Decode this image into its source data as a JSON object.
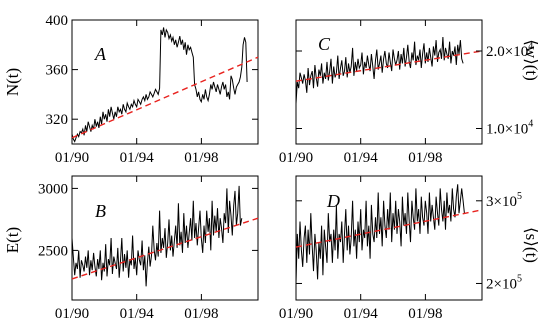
{
  "chart_data": [
    {
      "type": "line",
      "panel": "A",
      "ylabel": "N(t)",
      "x_ticks": [
        "01/90",
        "01/94",
        "01/98"
      ],
      "y_ticks": [
        "320",
        "360",
        "400"
      ],
      "xlim": [
        1990.0,
        2001.5
      ],
      "ylim": [
        300,
        400
      ],
      "y_axis_side": "left",
      "series": [
        {
          "style": "solid black",
          "x_start": 1990.0,
          "x_step": 0.0833,
          "values": [
            308,
            304,
            302,
            305,
            308,
            306,
            310,
            309,
            312,
            307,
            315,
            310,
            318,
            314,
            310,
            315,
            312,
            320,
            314,
            318,
            313,
            322,
            316,
            326,
            320,
            324,
            318,
            328,
            322,
            330,
            325,
            320,
            326,
            322,
            330,
            326,
            328,
            324,
            332,
            328,
            326,
            333,
            330,
            328,
            332,
            330,
            335,
            332,
            330,
            336,
            334,
            332,
            336,
            338,
            335,
            340,
            336,
            338,
            342,
            340,
            338,
            341,
            344,
            342,
            340,
            345,
            392,
            388,
            394,
            386,
            392,
            390,
            385,
            388,
            383,
            386,
            380,
            384,
            378,
            382,
            387,
            380,
            384,
            376,
            382,
            372,
            380,
            376,
            378,
            374,
            370,
            348,
            344,
            338,
            342,
            336,
            334,
            340,
            336,
            344,
            338,
            335,
            340,
            348,
            344,
            350,
            346,
            342,
            348,
            344,
            340,
            346,
            350,
            344,
            348,
            338,
            342,
            336,
            355,
            352,
            345,
            340,
            346,
            348,
            350,
            354,
            362,
            380,
            386,
            382,
            350
          ]
        },
        {
          "style": "dashed red",
          "x": [
            1990.0,
            2001.5
          ],
          "values": [
            305,
            370
          ]
        }
      ]
    },
    {
      "type": "line",
      "panel": "B",
      "ylabel": "E(t)",
      "x_ticks": [
        "01/90",
        "01/94",
        "01/98"
      ],
      "y_ticks": [
        "2500",
        "3000"
      ],
      "xlim": [
        1990.0,
        2001.5
      ],
      "ylim": [
        2100,
        3100
      ],
      "y_axis_side": "left",
      "series": [
        {
          "style": "solid black",
          "x_start": 1990.0,
          "x_step": 0.0833,
          "values": [
            2600,
            2450,
            2300,
            2400,
            2350,
            2500,
            2280,
            2420,
            2380,
            2330,
            2450,
            2360,
            2500,
            2300,
            2420,
            2340,
            2480,
            2370,
            2290,
            2430,
            2350,
            2500,
            2260,
            2400,
            2330,
            2550,
            2290,
            2430,
            2380,
            2600,
            2310,
            2450,
            2400,
            2350,
            2520,
            2280,
            2420,
            2600,
            2330,
            2470,
            2360,
            2500,
            2280,
            2430,
            2380,
            2620,
            2350,
            2440,
            2300,
            2500,
            2420,
            2380,
            2580,
            2340,
            2460,
            2210,
            2400,
            2530,
            2370,
            2460,
            2700,
            2500,
            2420,
            2560,
            2450,
            2820,
            2480,
            2600,
            2520,
            2680,
            2440,
            2560,
            2750,
            2500,
            2620,
            2450,
            2580,
            2700,
            2520,
            2880,
            2540,
            2650,
            2480,
            2800,
            2560,
            2700,
            2520,
            2640,
            2760,
            2580,
            2900,
            2600,
            2720,
            2540,
            2680,
            2820,
            2600,
            2480,
            2700,
            2560,
            2820,
            2650,
            2760,
            2500,
            2900,
            2620,
            2780,
            2650,
            2840,
            2600,
            2760,
            2680,
            2560,
            2800,
            2720,
            3000,
            2640,
            2900,
            2780,
            2620,
            2860,
            2980,
            2700,
            2800,
            3020,
            2700,
            2760
          ]
        },
        {
          "style": "dashed red",
          "x": [
            1990.0,
            2001.5
          ],
          "values": [
            2270,
            2760
          ]
        }
      ]
    },
    {
      "type": "line",
      "panel": "C",
      "ylabel": "⟨w⟩(t)",
      "x_ticks": [
        "01/90",
        "01/94",
        "01/98"
      ],
      "y_ticks": [
        "1.0×10^4",
        "2.0×10^4"
      ],
      "xlim": [
        1990.0,
        2001.5
      ],
      "ylim": [
        8000,
        24000
      ],
      "y_axis_side": "right",
      "series": [
        {
          "style": "solid black",
          "x_start": 1990.0,
          "x_step": 0.0833,
          "values": [
            13200,
            16000,
            15200,
            17200,
            16500,
            15800,
            17000,
            16200,
            14600,
            17800,
            15600,
            16800,
            17400,
            15200,
            18200,
            16600,
            15400,
            17600,
            16800,
            18400,
            15800,
            17200,
            16400,
            18600,
            16200,
            17400,
            19000,
            15800,
            18000,
            16600,
            17200,
            19400,
            16400,
            17800,
            18800,
            16800,
            17400,
            19200,
            16600,
            18400,
            17200,
            18000,
            20400,
            16800,
            18600,
            17400,
            19000,
            17800,
            18200,
            19800,
            17000,
            18600,
            17800,
            19400,
            18200,
            17400,
            19600,
            18000,
            16400,
            18800,
            20200,
            17600,
            18400,
            19400,
            17200,
            19000,
            20000,
            18400,
            17800,
            19800,
            18600,
            17400,
            20200,
            19000,
            18200,
            18800,
            20000,
            17600,
            19600,
            18400,
            20400,
            18000,
            19200,
            20800,
            18600,
            17800,
            19800,
            18800,
            21200,
            18200,
            19400,
            18800,
            20200,
            17800,
            19600,
            21000,
            18400,
            19800,
            18600,
            20400,
            19200,
            18000,
            20600,
            19400,
            21400,
            18600,
            19800,
            20200,
            19000,
            21800,
            18800,
            20400,
            19600,
            19000,
            21200,
            18400,
            20000,
            19400,
            20600,
            18200,
            20800,
            19600,
            21400,
            19000,
            18400
          ]
        },
        {
          "style": "dashed red",
          "x": [
            1990.0,
            2001.5
          ],
          "values": [
            16100,
            20000
          ]
        }
      ]
    },
    {
      "type": "line",
      "panel": "D",
      "ylabel": "⟨s⟩(t)",
      "x_ticks": [
        "01/90",
        "01/94",
        "01/98"
      ],
      "y_ticks": [
        "2×10^5",
        "3×10^5"
      ],
      "xlim": [
        1990.0,
        2001.5
      ],
      "ylim": [
        180000,
        330000
      ],
      "y_axis_side": "right",
      "series": [
        {
          "style": "solid black",
          "x_start": 1990.0,
          "x_step": 0.0833,
          "values": [
            200000,
            260000,
            230000,
            275000,
            240000,
            220000,
            255000,
            270000,
            225000,
            265000,
            235000,
            285000,
            245000,
            215000,
            260000,
            240000,
            205000,
            250000,
            230000,
            270000,
            210000,
            265000,
            245000,
            225000,
            285000,
            250000,
            260000,
            225000,
            265000,
            240000,
            295000,
            230000,
            260000,
            250000,
            275000,
            225000,
            260000,
            290000,
            240000,
            270000,
            235000,
            255000,
            300000,
            245000,
            265000,
            230000,
            275000,
            250000,
            290000,
            240000,
            265000,
            255000,
            300000,
            245000,
            270000,
            230000,
            295000,
            260000,
            250000,
            280000,
            255000,
            310000,
            260000,
            280000,
            245000,
            300000,
            270000,
            255000,
            290000,
            265000,
            310000,
            250000,
            285000,
            265000,
            300000,
            260000,
            290000,
            275000,
            245000,
            305000,
            270000,
            285000,
            260000,
            310000,
            275000,
            250000,
            300000,
            280000,
            265000,
            315000,
            275000,
            290000,
            260000,
            305000,
            280000,
            270000,
            300000,
            285000,
            260000,
            310000,
            275000,
            295000,
            280000,
            265000,
            305000,
            285000,
            270000,
            315000,
            290000,
            275000,
            300000,
            265000,
            310000,
            285000,
            295000,
            275000,
            315000,
            290000,
            280000,
            305000,
            320000,
            285000,
            300000,
            315000,
            300000,
            285000
          ]
        },
        {
          "style": "dashed red",
          "x": [
            1990.0,
            2001.5
          ],
          "values": [
            244000,
            289000
          ]
        }
      ]
    }
  ]
}
